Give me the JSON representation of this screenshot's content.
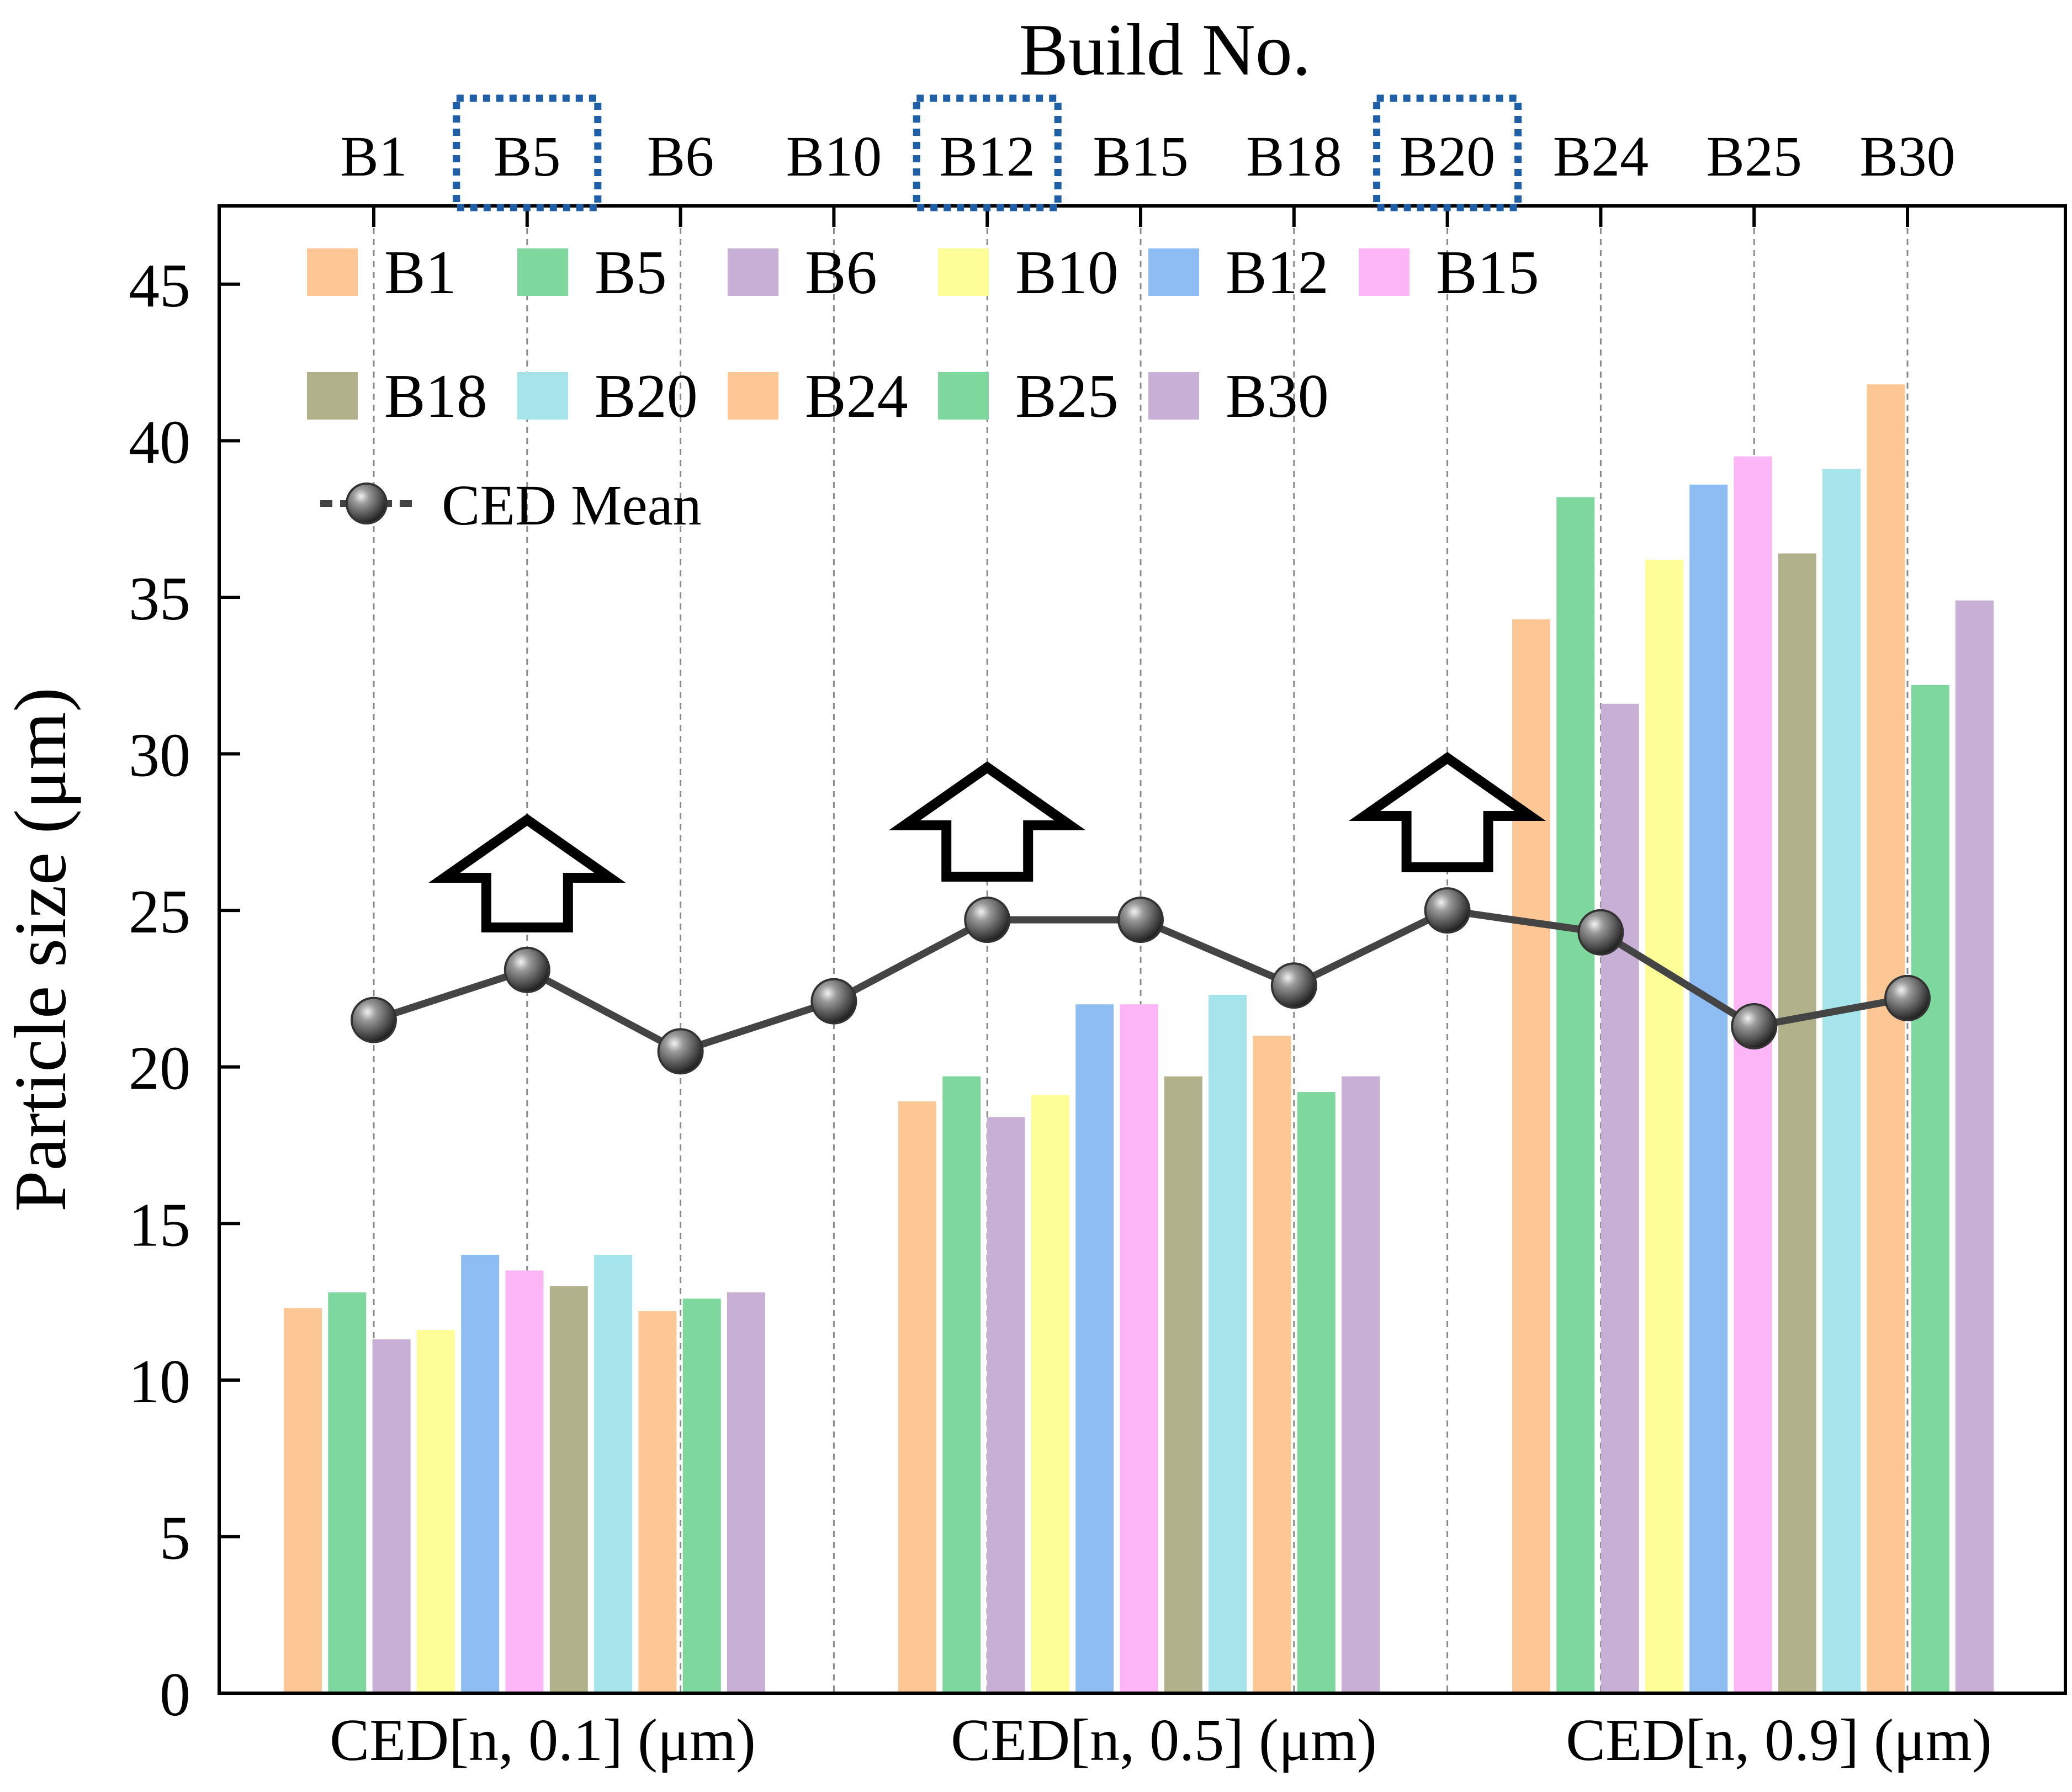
{
  "chart_data": {
    "type": "bar",
    "ylabel": "Particle size (μm)",
    "top_axis_title": "Build No.",
    "ylim": [
      0,
      47.5
    ],
    "yticks": [
      0,
      5,
      10,
      15,
      20,
      25,
      30,
      35,
      40,
      45
    ],
    "ytick_labels": [
      "0",
      "5",
      "10",
      "15",
      "20",
      "25",
      "30",
      "35",
      "40",
      "45"
    ],
    "categories": [
      "CED[n, 0.1] (μm)",
      "CED[n, 0.5] (μm)",
      "CED[n, 0.9] (μm)"
    ],
    "series": [
      {
        "name": "B1",
        "color": "#FDC795",
        "values": [
          12.3,
          18.9,
          34.3
        ]
      },
      {
        "name": "B5",
        "color": "#7ED79C",
        "values": [
          12.8,
          19.7,
          38.2
        ]
      },
      {
        "name": "B6",
        "color": "#C7AFD6",
        "values": [
          11.3,
          18.4,
          31.6
        ]
      },
      {
        "name": "B10",
        "color": "#FEFE98",
        "values": [
          11.6,
          19.1,
          36.2
        ]
      },
      {
        "name": "B12",
        "color": "#8EBDF4",
        "values": [
          14.0,
          22.0,
          38.6
        ]
      },
      {
        "name": "B15",
        "color": "#FCB6F7",
        "values": [
          13.5,
          22.0,
          39.5
        ]
      },
      {
        "name": "B18",
        "color": "#B1B18C",
        "values": [
          13.0,
          19.7,
          36.4
        ]
      },
      {
        "name": "B20",
        "color": "#A4E4EA",
        "values": [
          14.0,
          22.3,
          39.1
        ]
      },
      {
        "name": "B24",
        "color": "#FDC795",
        "values": [
          12.2,
          21.0,
          41.8
        ]
      },
      {
        "name": "B25",
        "color": "#7ED79C",
        "values": [
          12.6,
          19.2,
          32.2
        ]
      },
      {
        "name": "B30",
        "color": "#C7AFD6",
        "values": [
          12.8,
          19.7,
          34.9
        ]
      }
    ],
    "line_series": {
      "name": "CED Mean",
      "color": "#444444",
      "x_labels": [
        "B1",
        "B5",
        "B6",
        "B10",
        "B12",
        "B15",
        "B18",
        "B20",
        "B24",
        "B25",
        "B30"
      ],
      "values": [
        21.5,
        23.1,
        20.5,
        22.1,
        24.7,
        24.7,
        22.6,
        25.0,
        24.3,
        21.3,
        22.2
      ]
    },
    "highlighted_builds": [
      "B5",
      "B12",
      "B20"
    ],
    "highlight_color": "#1F5FA8",
    "grid": "vertical dashed at top-axis builds",
    "legend_placement": "top-left inside plot"
  }
}
